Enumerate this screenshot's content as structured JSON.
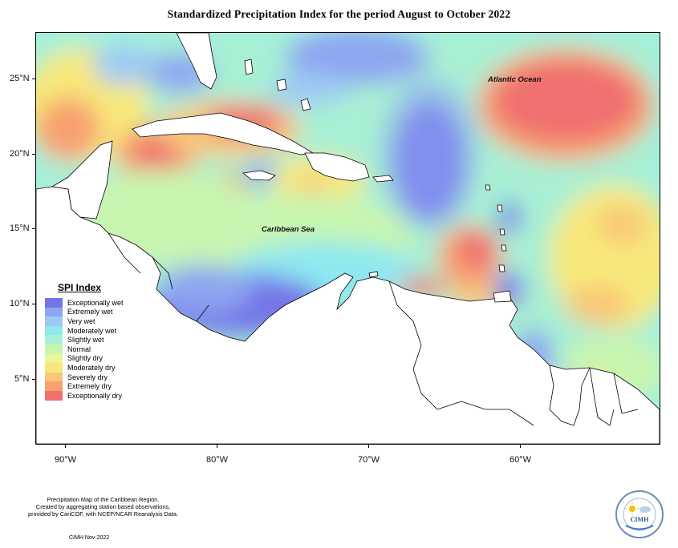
{
  "title": "Standardized Precipitation Index for the period August to October 2022",
  "map": {
    "labels": {
      "ocean": "Atlantic Ocean",
      "sea": "Caribbean Sea"
    },
    "lat_ticks": [
      "25°N",
      "20°N",
      "15°N",
      "10°N",
      "5°N"
    ],
    "lon_ticks": [
      "90°W",
      "80°W",
      "70°W",
      "60°W"
    ],
    "extent": {
      "lon_min": -92,
      "lon_max": -51,
      "lat_min": 1,
      "lat_max": 28
    },
    "land_color": "#ffffff",
    "outline_color": "#000000"
  },
  "legend": {
    "title": "SPI Index",
    "items": [
      {
        "label": "Exceptionally wet",
        "color": "#7474e8"
      },
      {
        "label": "Extremely wet",
        "color": "#8ea6f0"
      },
      {
        "label": "Very wet",
        "color": "#9dcaf5"
      },
      {
        "label": "Moderately wet",
        "color": "#8fe8f0"
      },
      {
        "label": "Slightly wet",
        "color": "#a8f0d4"
      },
      {
        "label": "Normal",
        "color": "#c8f5b0"
      },
      {
        "label": "Slightly dry",
        "color": "#e8f59a"
      },
      {
        "label": "Moderately dry",
        "color": "#f8e87a"
      },
      {
        "label": "Severely dry",
        "color": "#f8c878"
      },
      {
        "label": "Extremely dry",
        "color": "#f8a070"
      },
      {
        "label": "Exceptionally dry",
        "color": "#f07070"
      }
    ]
  },
  "credits": {
    "line1": "Precipitation Map of the Caribbean Region.",
    "line2": "Created by aggregating station based observations,",
    "line3": "provided by CariCOF, with NCEP/NCAR Reanalysis Data.",
    "date": "CIMH Nov-2022"
  },
  "logo": {
    "text": "CIMH"
  }
}
